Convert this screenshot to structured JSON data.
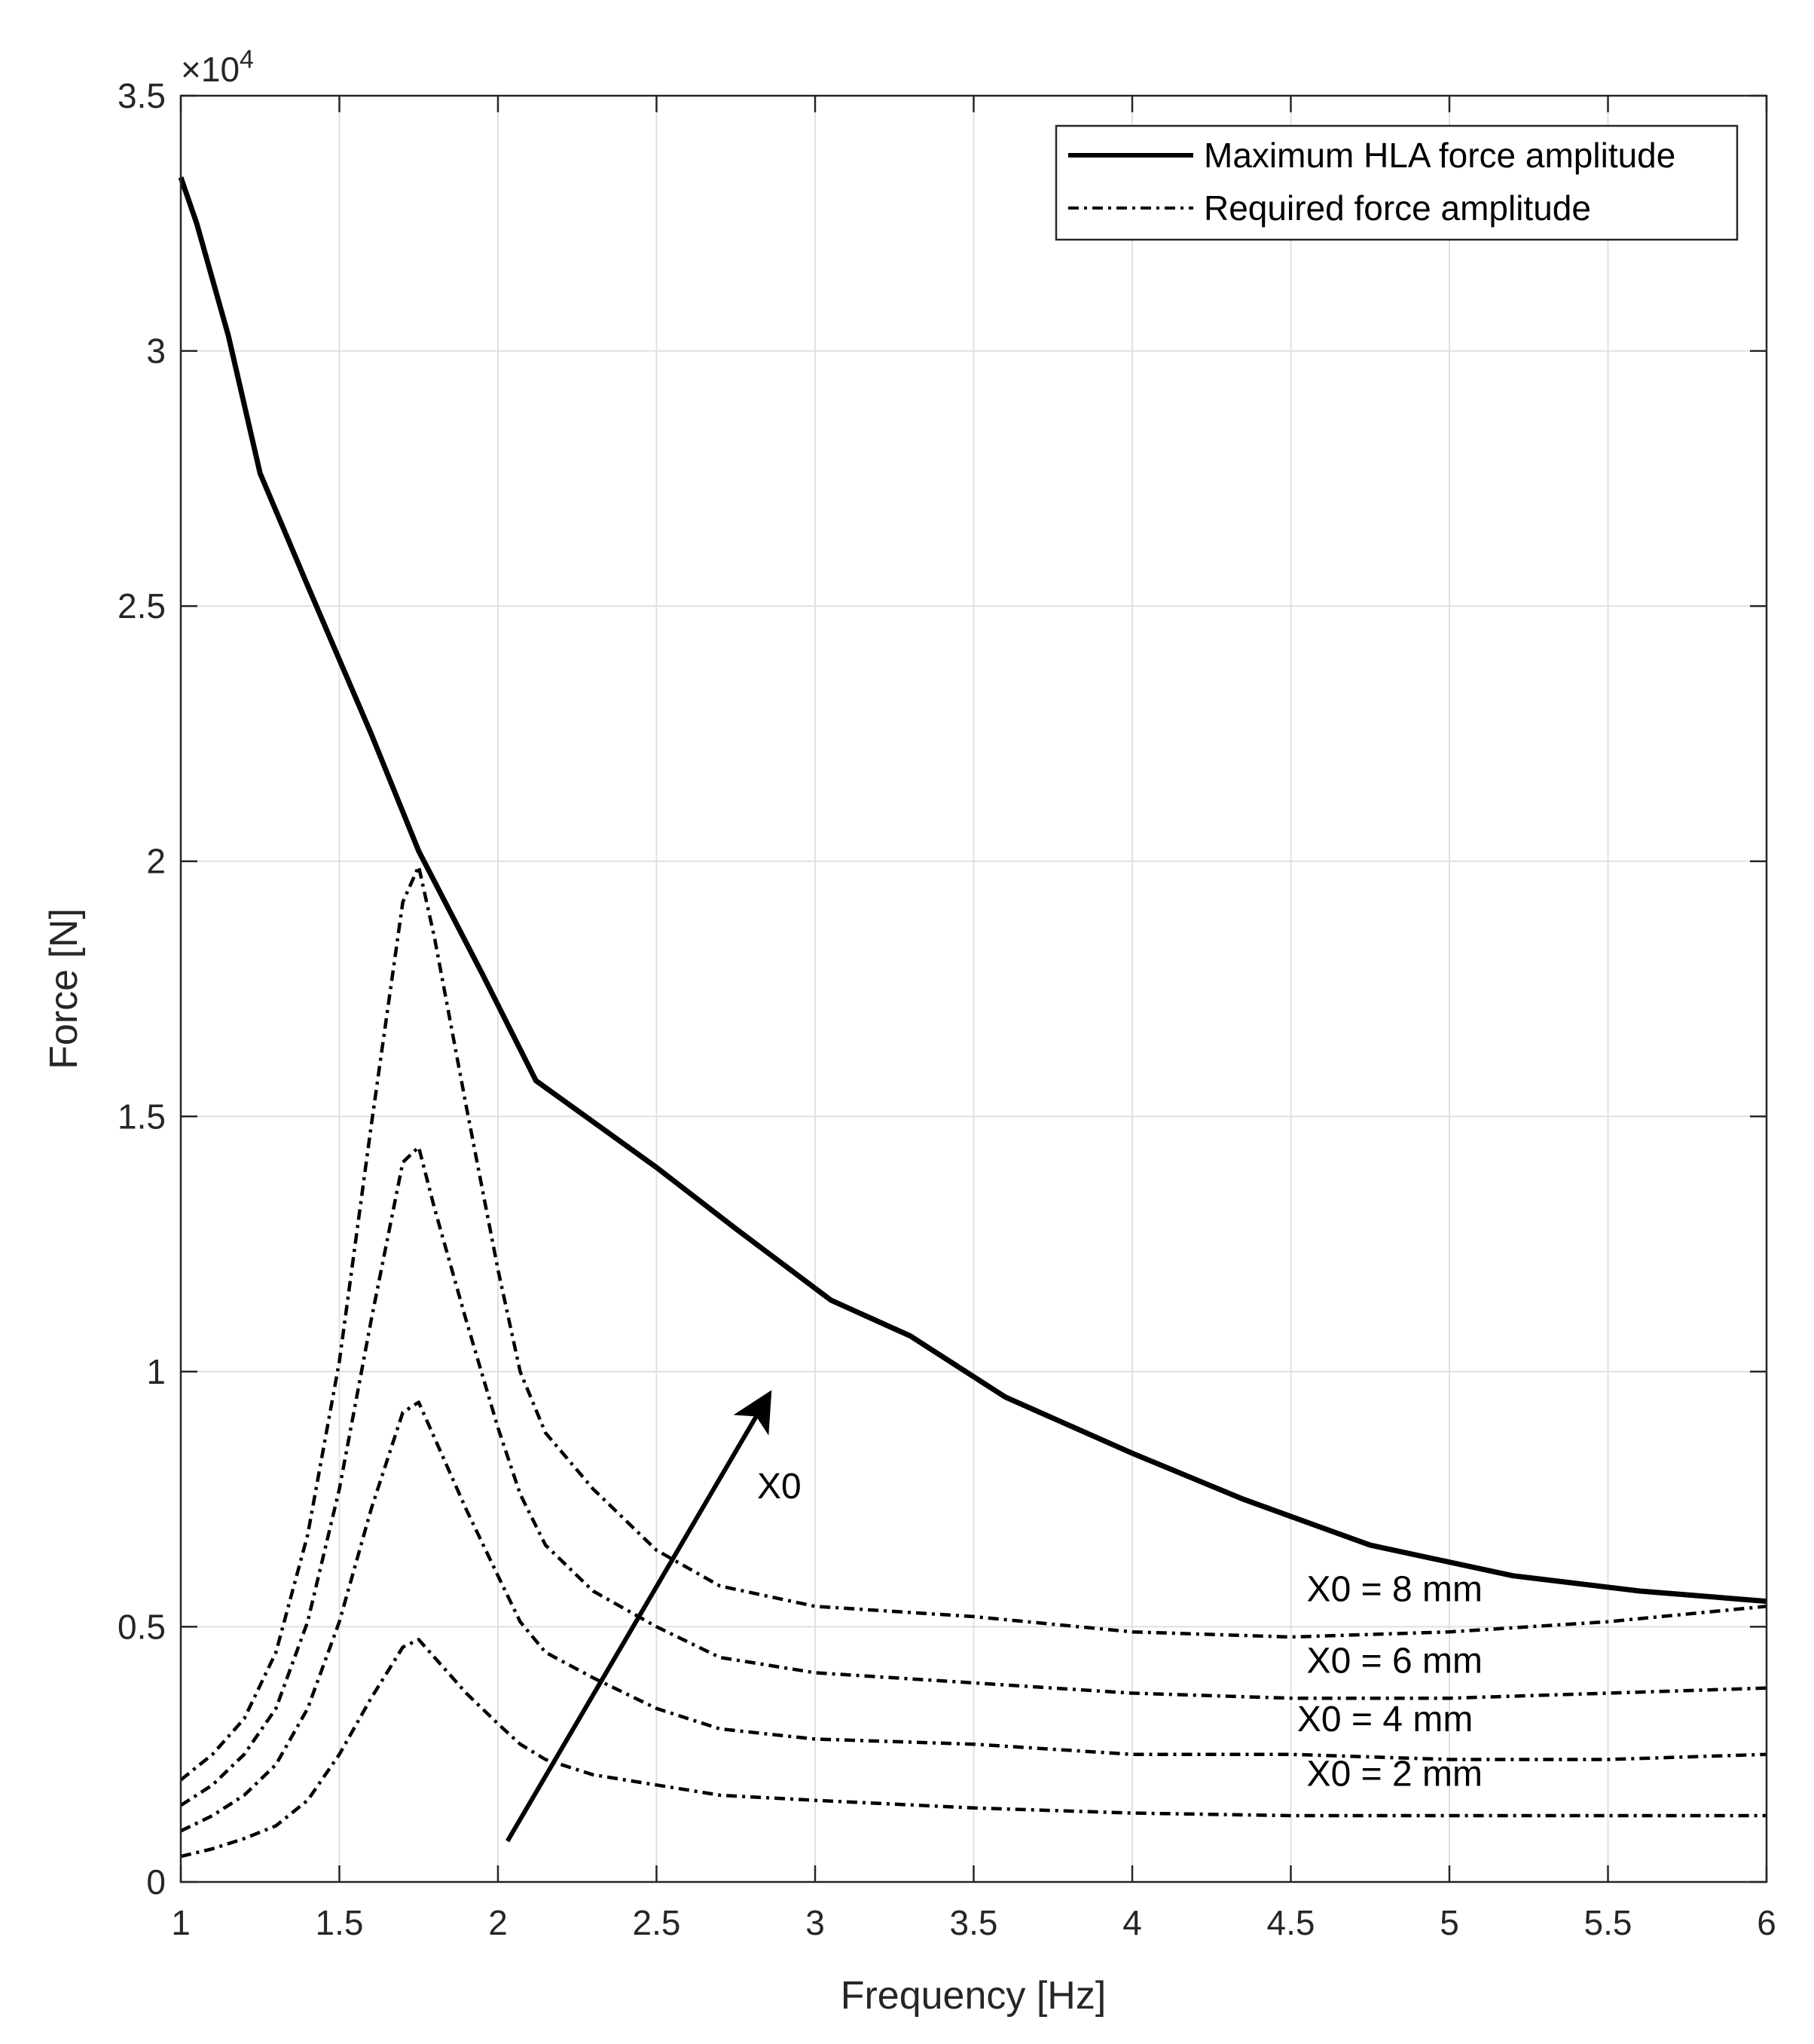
{
  "chart_data": {
    "type": "line",
    "title": "",
    "xlabel": "Frequency [Hz]",
    "ylabel": "Force [N]",
    "xlim": [
      1,
      6
    ],
    "ylim": [
      0,
      35000
    ],
    "y_exponent_label": "×10",
    "y_exponent_power": "4",
    "grid": true,
    "legend_position": "top-right",
    "x_ticks": [
      "1",
      "1.5",
      "2",
      "2.5",
      "3",
      "3.5",
      "4",
      "4.5",
      "5",
      "5.5",
      "6"
    ],
    "y_ticks": [
      "0",
      "0.5",
      "1",
      "1.5",
      "2",
      "2.5",
      "3",
      "3.5"
    ],
    "legend": [
      "Maximum HLA force amplitude",
      "Required force amplitude"
    ],
    "series": [
      {
        "name": "Maximum HLA force amplitude",
        "style": "solid",
        "x": [
          1.0,
          1.05,
          1.15,
          1.25,
          1.4,
          1.6,
          1.75,
          1.95,
          2.12,
          2.5,
          2.75,
          3.05,
          3.3,
          3.6,
          4.0,
          4.35,
          4.75,
          5.2,
          5.6,
          6.0
        ],
        "y": [
          33400,
          32500,
          30300,
          27600,
          25400,
          22500,
          20200,
          17800,
          15700,
          14000,
          12800,
          11400,
          10700,
          9500,
          8400,
          7500,
          6600,
          6000,
          5700,
          5500
        ]
      },
      {
        "name": "Required force amplitude (X0 = 8 mm)",
        "style": "dashdot",
        "x": [
          1.0,
          1.1,
          1.2,
          1.3,
          1.4,
          1.5,
          1.6,
          1.7,
          1.75,
          1.8,
          1.9,
          2.0,
          2.07,
          2.15,
          2.3,
          2.5,
          2.7,
          3.0,
          3.5,
          4.0,
          4.5,
          5.0,
          5.5,
          6.0
        ],
        "y": [
          2000,
          2500,
          3200,
          4500,
          6800,
          10200,
          14800,
          19200,
          19900,
          18500,
          15200,
          12000,
          10000,
          8800,
          7700,
          6500,
          5800,
          5400,
          5200,
          4900,
          4800,
          4900,
          5100,
          5400
        ]
      },
      {
        "name": "Required force amplitude (X0 = 6 mm)",
        "style": "dashdot",
        "x": [
          1.0,
          1.1,
          1.2,
          1.3,
          1.4,
          1.5,
          1.6,
          1.7,
          1.75,
          1.8,
          1.9,
          2.0,
          2.07,
          2.15,
          2.3,
          2.5,
          2.7,
          3.0,
          3.5,
          4.0,
          4.5,
          5.0,
          5.5,
          6.0
        ],
        "y": [
          1500,
          1900,
          2500,
          3400,
          5100,
          7700,
          11000,
          14100,
          14400,
          13200,
          11000,
          8900,
          7600,
          6600,
          5700,
          5000,
          4400,
          4100,
          3900,
          3700,
          3600,
          3600,
          3700,
          3800
        ]
      },
      {
        "name": "Required force amplitude (X0 = 4 mm)",
        "style": "dashdot",
        "x": [
          1.0,
          1.1,
          1.2,
          1.3,
          1.4,
          1.5,
          1.6,
          1.7,
          1.75,
          1.8,
          1.9,
          2.0,
          2.07,
          2.15,
          2.3,
          2.5,
          2.7,
          3.0,
          3.5,
          4.0,
          4.5,
          5.0,
          5.5,
          6.0
        ],
        "y": [
          1000,
          1300,
          1700,
          2300,
          3400,
          5100,
          7300,
          9200,
          9400,
          8700,
          7300,
          6000,
          5100,
          4500,
          4000,
          3400,
          3000,
          2800,
          2700,
          2500,
          2500,
          2400,
          2400,
          2500
        ]
      },
      {
        "name": "Required force amplitude (X0 = 2 mm)",
        "style": "dashdot",
        "x": [
          1.0,
          1.1,
          1.2,
          1.3,
          1.4,
          1.5,
          1.6,
          1.7,
          1.75,
          1.8,
          1.9,
          2.0,
          2.07,
          2.15,
          2.3,
          2.5,
          2.7,
          3.0,
          3.5,
          4.0,
          4.5,
          5.0,
          5.5,
          6.0
        ],
        "y": [
          500,
          650,
          850,
          1100,
          1600,
          2500,
          3600,
          4600,
          4750,
          4400,
          3700,
          3100,
          2700,
          2400,
          2100,
          1900,
          1700,
          1600,
          1450,
          1350,
          1300,
          1300,
          1300,
          1300
        ]
      }
    ],
    "annotations": {
      "arrow_label": "X0",
      "arrow": {
        "from": [
          2.03,
          800
        ],
        "to": [
          2.85,
          9500
        ]
      },
      "curve_labels": [
        {
          "text": "X0 = 8 mm",
          "x": 4.55,
          "y": 5500
        },
        {
          "text": "X0 = 6 mm",
          "x": 4.55,
          "y": 4100
        },
        {
          "text": "X0 = 4 mm",
          "x": 4.52,
          "y": 2950
        },
        {
          "text": "X0 = 2 mm",
          "x": 4.55,
          "y": 1880
        }
      ]
    }
  }
}
